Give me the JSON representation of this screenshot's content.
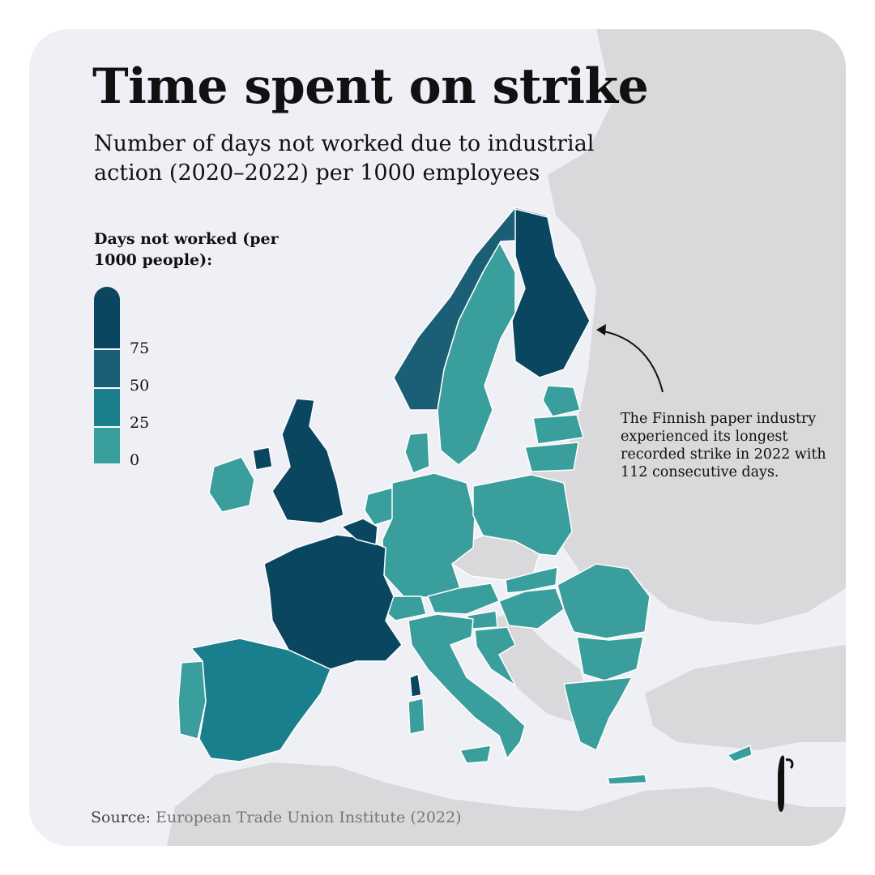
{
  "title": "Time spent on strike",
  "subtitle": "Number of days not worked due to industrial action (2020–2022) per 1000 employees",
  "legend": {
    "title": "Days not worked (per 1000 people):",
    "bins": [
      {
        "range": "75+",
        "color": "#0b4660"
      },
      {
        "range": "50–75",
        "color": "#1a5f75"
      },
      {
        "range": "25–50",
        "color": "#1a7f8c"
      },
      {
        "range": "0–25",
        "color": "#3a9e9c"
      }
    ],
    "tick_labels": [
      "75",
      "50",
      "25",
      "0"
    ]
  },
  "annotation": {
    "text": "The Finnish paper industry experienced its longest recorded strike in 2022 with 112 consecutive days.",
    "target": "Finland"
  },
  "source": {
    "prefix": "Source:",
    "name": "European Trade Union Institute (2022)"
  },
  "colors": {
    "background": "#eef0f6",
    "no_data": "#d9d9db",
    "border": "#ffffff",
    "text": "#111111"
  },
  "regions": [
    {
      "name": "Finland",
      "bin": "75+"
    },
    {
      "name": "France",
      "bin": "75+"
    },
    {
      "name": "Belgium",
      "bin": "75+"
    },
    {
      "name": "United Kingdom",
      "bin": "75+"
    },
    {
      "name": "Northern Ireland",
      "bin": "75+"
    },
    {
      "name": "Corsica",
      "bin": "75+"
    },
    {
      "name": "Norway",
      "bin": "50–75"
    },
    {
      "name": "Spain",
      "bin": "25–50"
    },
    {
      "name": "Ireland",
      "bin": "0–25"
    },
    {
      "name": "Sweden",
      "bin": "0–25"
    },
    {
      "name": "Denmark",
      "bin": "0–25"
    },
    {
      "name": "Netherlands",
      "bin": "0–25"
    },
    {
      "name": "Germany",
      "bin": "0–25"
    },
    {
      "name": "Poland",
      "bin": "0–25"
    },
    {
      "name": "Estonia",
      "bin": "0–25"
    },
    {
      "name": "Latvia",
      "bin": "0–25"
    },
    {
      "name": "Lithuania",
      "bin": "0–25"
    },
    {
      "name": "Portugal",
      "bin": "0–25"
    },
    {
      "name": "Italy",
      "bin": "0–25"
    },
    {
      "name": "Austria",
      "bin": "0–25"
    },
    {
      "name": "Switzerland",
      "bin": "0–25"
    },
    {
      "name": "Slovakia",
      "bin": "0–25"
    },
    {
      "name": "Hungary",
      "bin": "0–25"
    },
    {
      "name": "Slovenia",
      "bin": "0–25"
    },
    {
      "name": "Croatia",
      "bin": "0–25"
    },
    {
      "name": "Romania",
      "bin": "0–25"
    },
    {
      "name": "Bulgaria",
      "bin": "0–25"
    },
    {
      "name": "Greece",
      "bin": "0–25"
    },
    {
      "name": "Cyprus",
      "bin": "0–25"
    },
    {
      "name": "Czech Republic",
      "bin": null
    }
  ]
}
